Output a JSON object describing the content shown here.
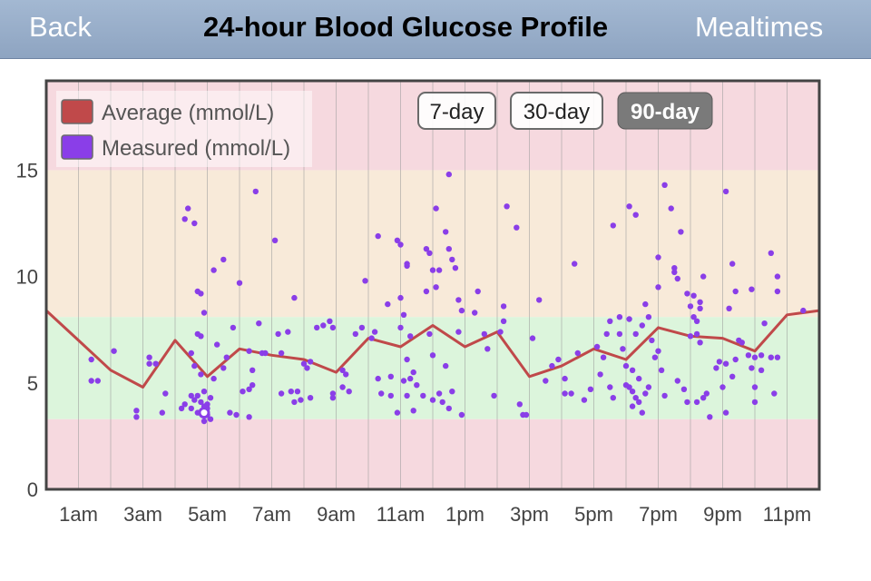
{
  "nav": {
    "back_label": "Back",
    "title": "24-hour Blood Glucose Profile",
    "right_label": "Mealtimes"
  },
  "colors": {
    "navbar": "#94a9c5",
    "band_high": "#f6d9df",
    "band_elevated": "#f8ead9",
    "band_target": "#dcf5dc",
    "band_low": "#f6d9df",
    "average_line": "#c0494a",
    "measured_dot": "#8a3ee8",
    "active_button": "#7a7a7a"
  },
  "range_buttons": [
    {
      "label": "7-day",
      "active": false
    },
    {
      "label": "30-day",
      "active": false
    },
    {
      "label": "90-day",
      "active": true
    }
  ],
  "chart_data": {
    "type": "scatter",
    "title": "24-hour Blood Glucose Profile",
    "xlabel": "",
    "ylabel": "",
    "xlim": [
      0,
      24
    ],
    "ylim": [
      0,
      19.2
    ],
    "x_tick_labels": [
      {
        "x": 1,
        "label": "1am"
      },
      {
        "x": 3,
        "label": "3am"
      },
      {
        "x": 5,
        "label": "5am"
      },
      {
        "x": 7,
        "label": "7am"
      },
      {
        "x": 9,
        "label": "9am"
      },
      {
        "x": 11,
        "label": "11am"
      },
      {
        "x": 13,
        "label": "1pm"
      },
      {
        "x": 15,
        "label": "3pm"
      },
      {
        "x": 17,
        "label": "5pm"
      },
      {
        "x": 19,
        "label": "7pm"
      },
      {
        "x": 21,
        "label": "9pm"
      },
      {
        "x": 23,
        "label": "11pm"
      }
    ],
    "y_ticks": [
      0,
      5,
      10,
      15
    ],
    "grid": true,
    "legend_position": "top-left",
    "bands": [
      {
        "from": 0,
        "to": 3.3,
        "color": "#f6d9df"
      },
      {
        "from": 3.3,
        "to": 8.1,
        "color": "#dcf5dc"
      },
      {
        "from": 8.1,
        "to": 15,
        "color": "#f8ead9"
      },
      {
        "from": 15,
        "to": 19.2,
        "color": "#f6d9df"
      }
    ],
    "series": [
      {
        "name": "Average (mmol/L)",
        "kind": "line",
        "color": "#c0494a",
        "points": [
          [
            0,
            8.4
          ],
          [
            1,
            7.0
          ],
          [
            2,
            5.6
          ],
          [
            3,
            4.8
          ],
          [
            4,
            7.0
          ],
          [
            5,
            5.3
          ],
          [
            6,
            6.6
          ],
          [
            7,
            6.3
          ],
          [
            8,
            6.1
          ],
          [
            9,
            5.5
          ],
          [
            10,
            7.1
          ],
          [
            11,
            6.7
          ],
          [
            12,
            7.7
          ],
          [
            13,
            6.7
          ],
          [
            14,
            7.4
          ],
          [
            15,
            5.3
          ],
          [
            16,
            5.8
          ],
          [
            17,
            6.6
          ],
          [
            18,
            6.1
          ],
          [
            19,
            7.6
          ],
          [
            20,
            7.2
          ],
          [
            21,
            7.1
          ],
          [
            22,
            6.5
          ],
          [
            23,
            8.2
          ],
          [
            24,
            8.4
          ]
        ]
      },
      {
        "name": "Measured (mmol/L)",
        "kind": "scatter",
        "color": "#8a3ee8",
        "points": [
          [
            1.4,
            6.1
          ],
          [
            1.4,
            5.1
          ],
          [
            1.6,
            5.1
          ],
          [
            2.1,
            6.5
          ],
          [
            2.8,
            3.7
          ],
          [
            2.8,
            3.4
          ],
          [
            3.2,
            6.2
          ],
          [
            3.2,
            5.9
          ],
          [
            3.4,
            5.9
          ],
          [
            3.6,
            3.6
          ],
          [
            3.7,
            4.5
          ],
          [
            4.3,
            12.7
          ],
          [
            4.4,
            13.2
          ],
          [
            4.6,
            12.5
          ],
          [
            4.5,
            6.4
          ],
          [
            4.6,
            5.8
          ],
          [
            4.7,
            9.3
          ],
          [
            4.8,
            9.2
          ],
          [
            4.9,
            8.3
          ],
          [
            4.7,
            7.3
          ],
          [
            4.8,
            7.2
          ],
          [
            4.5,
            4.4
          ],
          [
            4.6,
            4.2
          ],
          [
            4.8,
            4.1
          ],
          [
            4.9,
            3.9
          ],
          [
            5.0,
            3.8
          ],
          [
            4.7,
            3.6
          ],
          [
            5.0,
            3.5
          ],
          [
            4.9,
            3.2
          ],
          [
            5.1,
            3.3
          ],
          [
            4.5,
            3.8
          ],
          [
            5.1,
            4.3
          ],
          [
            4.8,
            5.4
          ],
          [
            4.7,
            4.4
          ],
          [
            4.9,
            4.6
          ],
          [
            5.0,
            4.0
          ],
          [
            4.3,
            4.0
          ],
          [
            4.2,
            3.8
          ],
          [
            5.2,
            10.3
          ],
          [
            5.5,
            10.8
          ],
          [
            5.3,
            6.8
          ],
          [
            5.6,
            6.2
          ],
          [
            5.5,
            5.7
          ],
          [
            5.2,
            5.2
          ],
          [
            5.8,
            7.6
          ],
          [
            5.7,
            3.6
          ],
          [
            5.9,
            3.5
          ],
          [
            6.3,
            3.4
          ],
          [
            6.0,
            9.7
          ],
          [
            6.1,
            4.6
          ],
          [
            6.3,
            4.7
          ],
          [
            6.3,
            6.5
          ],
          [
            6.6,
            7.8
          ],
          [
            6.5,
            14.0
          ],
          [
            6.4,
            5.6
          ],
          [
            6.4,
            4.9
          ],
          [
            6.7,
            6.4
          ],
          [
            6.8,
            6.4
          ],
          [
            7.1,
            11.7
          ],
          [
            7.2,
            7.3
          ],
          [
            7.3,
            6.4
          ],
          [
            7.3,
            4.5
          ],
          [
            7.5,
            7.4
          ],
          [
            7.7,
            9.0
          ],
          [
            7.6,
            4.6
          ],
          [
            7.8,
            4.6
          ],
          [
            7.7,
            4.1
          ],
          [
            7.9,
            4.2
          ],
          [
            8.0,
            5.9
          ],
          [
            8.1,
            5.7
          ],
          [
            8.2,
            6.0
          ],
          [
            8.2,
            4.3
          ],
          [
            8.4,
            7.6
          ],
          [
            8.6,
            7.7
          ],
          [
            8.8,
            7.9
          ],
          [
            8.9,
            7.6
          ],
          [
            8.9,
            4.5
          ],
          [
            8.9,
            4.3
          ],
          [
            9.2,
            5.6
          ],
          [
            9.3,
            5.4
          ],
          [
            9.2,
            4.8
          ],
          [
            9.4,
            4.6
          ],
          [
            9.6,
            7.3
          ],
          [
            9.8,
            7.6
          ],
          [
            9.9,
            9.8
          ],
          [
            10.1,
            7.1
          ],
          [
            10.2,
            7.4
          ],
          [
            10.3,
            11.9
          ],
          [
            10.6,
            8.7
          ],
          [
            10.3,
            5.2
          ],
          [
            10.4,
            4.5
          ],
          [
            10.7,
            5.3
          ],
          [
            10.7,
            4.4
          ],
          [
            10.9,
            11.7
          ],
          [
            11.0,
            11.5
          ],
          [
            11.2,
            10.5
          ],
          [
            11.2,
            10.6
          ],
          [
            11.0,
            9.0
          ],
          [
            11.1,
            8.2
          ],
          [
            11.0,
            7.6
          ],
          [
            11.3,
            7.2
          ],
          [
            11.2,
            6.1
          ],
          [
            11.4,
            5.5
          ],
          [
            11.3,
            5.2
          ],
          [
            11.1,
            5.1
          ],
          [
            11.5,
            4.9
          ],
          [
            11.2,
            4.4
          ],
          [
            11.4,
            3.7
          ],
          [
            10.9,
            3.6
          ],
          [
            11.7,
            4.4
          ],
          [
            11.8,
            11.3
          ],
          [
            11.9,
            11.1
          ],
          [
            12.0,
            10.3
          ],
          [
            12.2,
            10.3
          ],
          [
            11.8,
            9.3
          ],
          [
            12.1,
            9.5
          ],
          [
            11.9,
            7.3
          ],
          [
            12.0,
            6.3
          ],
          [
            12.4,
            5.8
          ],
          [
            12.2,
            4.5
          ],
          [
            12.6,
            4.6
          ],
          [
            12.3,
            4.1
          ],
          [
            12.0,
            4.2
          ],
          [
            12.5,
            3.8
          ],
          [
            12.9,
            3.5
          ],
          [
            12.1,
            13.2
          ],
          [
            12.4,
            12.1
          ],
          [
            12.5,
            11.3
          ],
          [
            12.6,
            10.8
          ],
          [
            12.7,
            10.4
          ],
          [
            12.8,
            8.9
          ],
          [
            12.9,
            8.4
          ],
          [
            12.8,
            7.4
          ],
          [
            12.5,
            14.8
          ],
          [
            13.4,
            9.3
          ],
          [
            13.3,
            8.3
          ],
          [
            13.6,
            7.3
          ],
          [
            13.7,
            6.6
          ],
          [
            13.9,
            4.4
          ],
          [
            14.1,
            7.4
          ],
          [
            14.2,
            7.9
          ],
          [
            14.2,
            8.6
          ],
          [
            14.3,
            13.3
          ],
          [
            14.6,
            12.3
          ],
          [
            14.7,
            4.0
          ],
          [
            14.8,
            3.5
          ],
          [
            14.9,
            3.5
          ],
          [
            15.1,
            7.1
          ],
          [
            15.3,
            8.9
          ],
          [
            15.5,
            5.1
          ],
          [
            15.7,
            5.8
          ],
          [
            15.9,
            6.1
          ],
          [
            16.1,
            5.2
          ],
          [
            16.1,
            4.5
          ],
          [
            16.3,
            4.5
          ],
          [
            16.4,
            10.6
          ],
          [
            16.5,
            6.4
          ],
          [
            16.7,
            4.2
          ],
          [
            16.9,
            4.7
          ],
          [
            17.1,
            6.7
          ],
          [
            17.2,
            5.4
          ],
          [
            17.3,
            6.2
          ],
          [
            17.4,
            7.3
          ],
          [
            17.5,
            7.9
          ],
          [
            17.5,
            4.8
          ],
          [
            17.6,
            4.3
          ],
          [
            17.8,
            8.1
          ],
          [
            17.8,
            7.3
          ],
          [
            17.9,
            6.6
          ],
          [
            17.6,
            12.4
          ],
          [
            18.1,
            13.3
          ],
          [
            18.3,
            12.9
          ],
          [
            18.1,
            8.0
          ],
          [
            18.3,
            7.3
          ],
          [
            18.0,
            5.8
          ],
          [
            18.2,
            5.6
          ],
          [
            18.4,
            5.2
          ],
          [
            18.0,
            4.9
          ],
          [
            18.1,
            4.8
          ],
          [
            18.2,
            4.6
          ],
          [
            18.3,
            4.3
          ],
          [
            18.4,
            4.1
          ],
          [
            18.2,
            3.9
          ],
          [
            18.5,
            3.6
          ],
          [
            18.6,
            4.5
          ],
          [
            18.7,
            4.8
          ],
          [
            18.6,
            8.7
          ],
          [
            18.7,
            8.1
          ],
          [
            18.5,
            7.7
          ],
          [
            18.8,
            7.0
          ],
          [
            18.9,
            6.2
          ],
          [
            19.0,
            6.5
          ],
          [
            19.1,
            5.6
          ],
          [
            19.2,
            4.4
          ],
          [
            19.2,
            14.3
          ],
          [
            19.0,
            10.9
          ],
          [
            19.4,
            13.2
          ],
          [
            19.0,
            9.5
          ],
          [
            19.5,
            10.4
          ],
          [
            19.5,
            10.2
          ],
          [
            19.6,
            9.9
          ],
          [
            19.7,
            12.1
          ],
          [
            19.6,
            5.1
          ],
          [
            19.9,
            9.2
          ],
          [
            20.0,
            8.6
          ],
          [
            20.1,
            9.1
          ],
          [
            20.1,
            8.1
          ],
          [
            20.2,
            7.9
          ],
          [
            20.0,
            7.2
          ],
          [
            20.3,
            8.8
          ],
          [
            20.3,
            8.5
          ],
          [
            20.4,
            10.0
          ],
          [
            20.2,
            7.3
          ],
          [
            20.3,
            6.9
          ],
          [
            19.8,
            4.7
          ],
          [
            19.9,
            4.1
          ],
          [
            20.2,
            4.1
          ],
          [
            20.4,
            4.3
          ],
          [
            20.5,
            4.5
          ],
          [
            20.6,
            3.4
          ],
          [
            20.8,
            5.7
          ],
          [
            20.9,
            6.0
          ],
          [
            21.0,
            4.8
          ],
          [
            21.1,
            5.9
          ],
          [
            21.1,
            14.0
          ],
          [
            21.3,
            10.6
          ],
          [
            21.4,
            9.3
          ],
          [
            21.2,
            8.5
          ],
          [
            21.5,
            7.0
          ],
          [
            21.6,
            6.9
          ],
          [
            21.4,
            6.1
          ],
          [
            21.3,
            5.3
          ],
          [
            21.1,
            3.6
          ],
          [
            21.9,
            9.4
          ],
          [
            21.8,
            6.3
          ],
          [
            21.9,
            5.7
          ],
          [
            22.0,
            4.8
          ],
          [
            22.2,
            5.6
          ],
          [
            22.3,
            7.8
          ],
          [
            22.5,
            11.1
          ],
          [
            22.7,
            10.0
          ],
          [
            22.7,
            9.3
          ],
          [
            22.5,
            6.2
          ],
          [
            22.7,
            6.2
          ],
          [
            22.2,
            6.3
          ],
          [
            22.0,
            6.2
          ],
          [
            22.0,
            4.1
          ],
          [
            22.6,
            4.5
          ],
          [
            23.5,
            8.4
          ]
        ]
      }
    ],
    "highlighted_point": [
      4.9,
      3.6
    ]
  }
}
